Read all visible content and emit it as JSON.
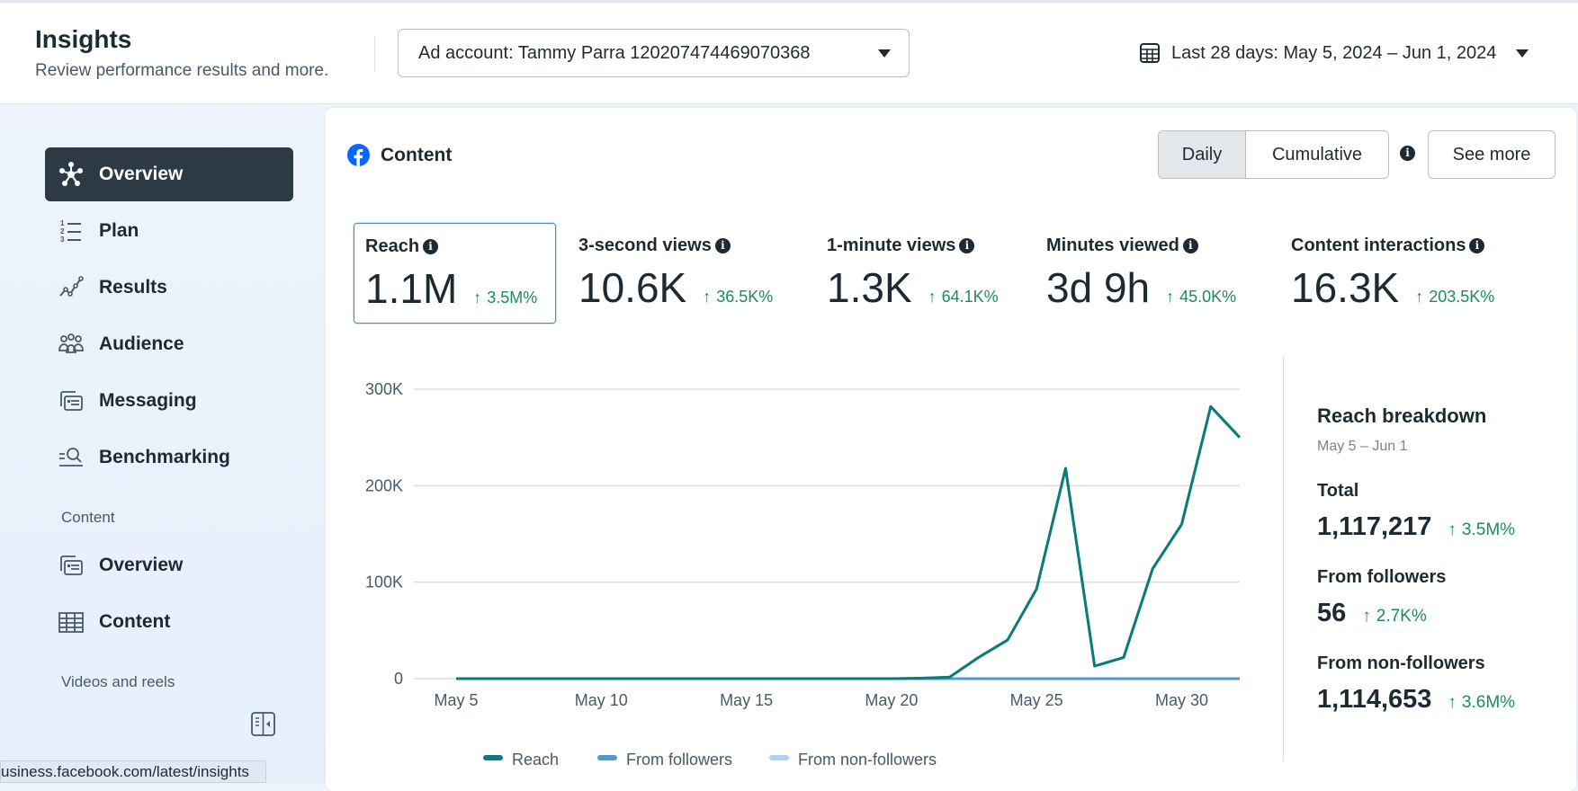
{
  "header": {
    "title": "Insights",
    "subtitle": "Review performance results and more.",
    "ad_account": "Ad account: Tammy Parra 120207474469070368",
    "date_range": "Last 28 days: May 5, 2024 – Jun 1, 2024"
  },
  "sidebar": {
    "items": [
      {
        "label": "Overview",
        "icon": "overview-icon",
        "active": true
      },
      {
        "label": "Plan",
        "icon": "numbered-list-icon"
      },
      {
        "label": "Results",
        "icon": "trend-line-icon"
      },
      {
        "label": "Audience",
        "icon": "people-icon"
      },
      {
        "label": "Messaging",
        "icon": "messaging-icon"
      },
      {
        "label": "Benchmarking",
        "icon": "benchmark-search-icon"
      }
    ],
    "section_content": "Content",
    "content_items": [
      {
        "label": "Overview",
        "icon": "messaging-icon"
      },
      {
        "label": "Content",
        "icon": "table-icon"
      }
    ],
    "section_videos": "Videos and reels"
  },
  "status_url": "usiness.facebook.com/latest/insights",
  "main": {
    "title": "Content",
    "toggle": {
      "daily": "Daily",
      "cumulative": "Cumulative",
      "selected": "Daily"
    },
    "see_more": "See more",
    "metrics": [
      {
        "label": "Reach",
        "value": "1.1M",
        "delta": "3.5M%"
      },
      {
        "label": "3-second views",
        "value": "10.6K",
        "delta": "36.5K%"
      },
      {
        "label": "1-minute views",
        "value": "1.3K",
        "delta": "64.1K%"
      },
      {
        "label": "Minutes viewed",
        "value": "3d 9h",
        "delta": "45.0K%"
      },
      {
        "label": "Content interactions",
        "value": "16.3K",
        "delta": "203.5K%"
      }
    ],
    "breakdown": {
      "title": "Reach breakdown",
      "range": "May 5 – Jun 1",
      "rows": [
        {
          "label": "Total",
          "value": "1,117,217",
          "delta": "3.5M%"
        },
        {
          "label": "From followers",
          "value": "56",
          "delta": "2.7K%"
        },
        {
          "label": "From non-followers",
          "value": "1,114,653",
          "delta": "3.6M%"
        }
      ]
    }
  },
  "colors": {
    "reach": "#0b7a7a",
    "followers": "#4a9bd6",
    "non_followers": "#a9d5f2",
    "delta": "#1e8a5e",
    "active_nav": "#2b3a44"
  },
  "chart_data": {
    "type": "line",
    "x": [
      "May 5",
      "May 6",
      "May 7",
      "May 8",
      "May 9",
      "May 10",
      "May 11",
      "May 12",
      "May 13",
      "May 14",
      "May 15",
      "May 16",
      "May 17",
      "May 18",
      "May 19",
      "May 20",
      "May 21",
      "May 22",
      "May 23",
      "May 24",
      "May 25",
      "May 26",
      "May 27",
      "May 28",
      "May 29",
      "May 30",
      "May 31",
      "Jun 1"
    ],
    "x_ticks": [
      "May 5",
      "May 10",
      "May 15",
      "May 20",
      "May 25",
      "May 30"
    ],
    "y_ticks": [
      "0",
      "100K",
      "200K",
      "300K"
    ],
    "ylim": [
      0,
      300000
    ],
    "grid": true,
    "legend_placement": "bottom",
    "series": [
      {
        "name": "Reach",
        "values": [
          0,
          0,
          0,
          0,
          0,
          0,
          0,
          0,
          0,
          0,
          0,
          0,
          0,
          0,
          0,
          0,
          500,
          1500,
          22000,
          40000,
          93000,
          218000,
          13000,
          22000,
          114000,
          160000,
          282000,
          250000
        ]
      },
      {
        "name": "From followers",
        "values": [
          0,
          0,
          0,
          0,
          0,
          0,
          0,
          0,
          0,
          0,
          0,
          0,
          0,
          0,
          0,
          0,
          0,
          0,
          0,
          0,
          0,
          0,
          0,
          0,
          0,
          0,
          0,
          0
        ]
      },
      {
        "name": "From non-followers",
        "values": [
          0,
          0,
          0,
          0,
          0,
          0,
          0,
          0,
          0,
          0,
          0,
          0,
          0,
          0,
          0,
          0,
          500,
          1500,
          22000,
          40000,
          93000,
          218000,
          13000,
          22000,
          114000,
          160000,
          282000,
          250000
        ]
      }
    ]
  }
}
